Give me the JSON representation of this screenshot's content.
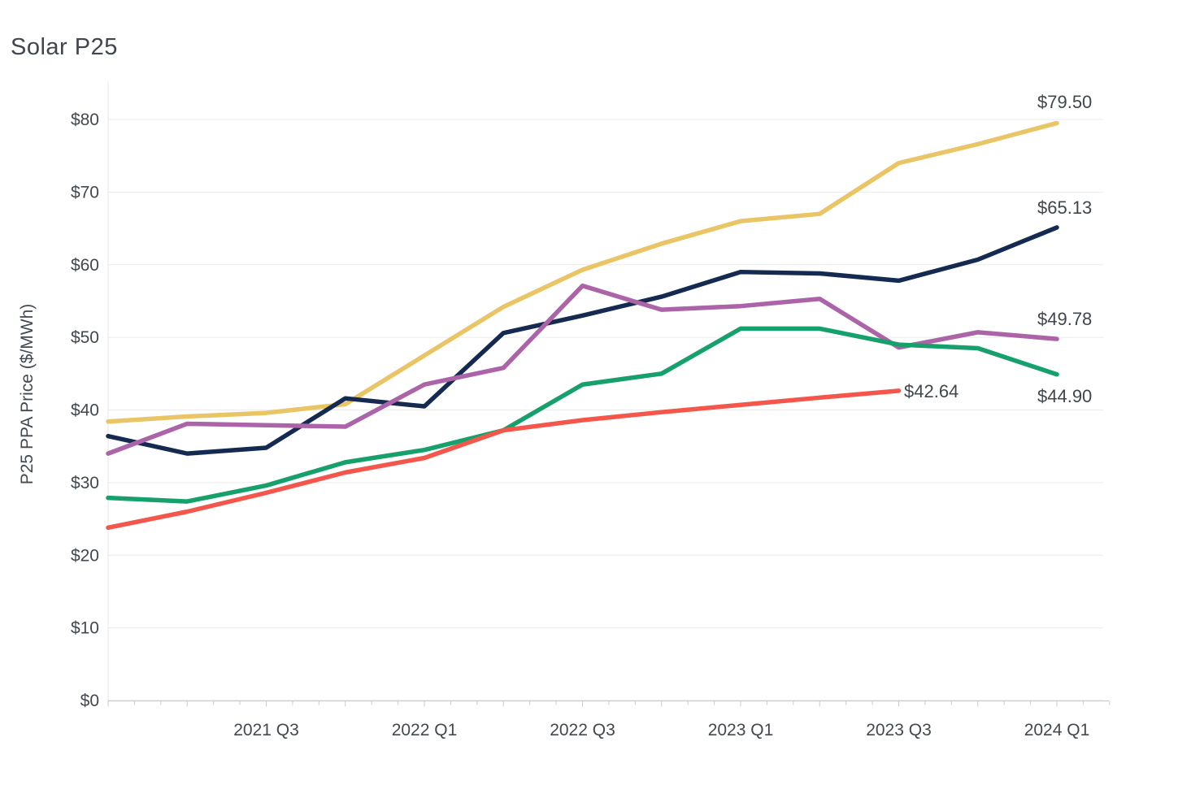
{
  "chart_data": {
    "type": "line",
    "title": "Solar P25",
    "xlabel": "",
    "ylabel": "P25 PPA Price ($/MWh)",
    "ylim": [
      0,
      80
    ],
    "grid": true,
    "legend": "none",
    "x": [
      "2021 Q1",
      "2021 Q2",
      "2021 Q3",
      "2021 Q4",
      "2022 Q1",
      "2022 Q2",
      "2022 Q3",
      "2022 Q4",
      "2023 Q1",
      "2023 Q2",
      "2023 Q3",
      "2023 Q4",
      "2024 Q1"
    ],
    "x_tick_labels": [
      "2021 Q3",
      "2022 Q1",
      "2022 Q3",
      "2023 Q1",
      "2023 Q3",
      "2024 Q1"
    ],
    "x_tick_indices": [
      2,
      4,
      6,
      8,
      10,
      12
    ],
    "y_ticks": [
      {
        "label": "$0",
        "value": 0
      },
      {
        "label": "$10",
        "value": 10
      },
      {
        "label": "$20",
        "value": 20
      },
      {
        "label": "$30",
        "value": 30
      },
      {
        "label": "$40",
        "value": 40
      },
      {
        "label": "$50",
        "value": 50
      },
      {
        "label": "$60",
        "value": 60
      },
      {
        "label": "$70",
        "value": 70
      },
      {
        "label": "$80",
        "value": 80
      }
    ],
    "series": [
      {
        "name": "gold-line",
        "color": "#E9C566",
        "end_label": "$79.50",
        "values": [
          38.4,
          39.1,
          39.6,
          40.8,
          47.5,
          54.2,
          59.3,
          62.9,
          66.0,
          67.0,
          74.0,
          76.6,
          79.5
        ]
      },
      {
        "name": "navy-line",
        "color": "#152A51",
        "end_label": "$65.13",
        "values": [
          36.4,
          34.0,
          34.8,
          41.6,
          40.5,
          50.6,
          53.0,
          55.6,
          59.0,
          58.8,
          57.8,
          60.7,
          65.13
        ]
      },
      {
        "name": "purple-line",
        "color": "#AC64A9",
        "end_label": "$49.78",
        "values": [
          34.0,
          38.1,
          37.9,
          37.7,
          43.5,
          45.8,
          57.1,
          53.8,
          54.3,
          55.3,
          48.6,
          50.7,
          49.78
        ]
      },
      {
        "name": "green-line",
        "color": "#16A16C",
        "end_label": "$44.90",
        "values": [
          27.9,
          27.4,
          29.6,
          32.8,
          34.5,
          37.2,
          43.5,
          45.0,
          51.2,
          51.2,
          49.0,
          48.5,
          44.9
        ]
      },
      {
        "name": "red-line",
        "color": "#F4564C",
        "end_label": "$42.64",
        "values": [
          23.8,
          26.0,
          28.6,
          31.4,
          33.4,
          37.2,
          38.6,
          39.7,
          40.7,
          41.7,
          42.64,
          null,
          null
        ]
      }
    ]
  },
  "colors": {
    "text": "#42484E",
    "title_text": "#3F464C",
    "gridline": "#EBEBEB",
    "axis_line": "#CBCBCB",
    "y_axis_line": "#E4E4E4",
    "background": "#FFFFFF"
  }
}
